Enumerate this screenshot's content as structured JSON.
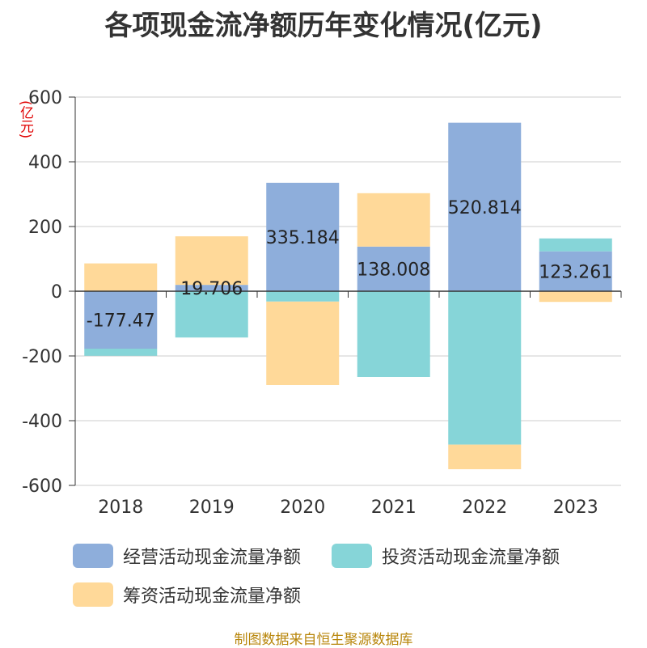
{
  "title": "各项现金流净额历年变化情况(亿元)",
  "unit_label": "(亿元)",
  "source": "制图数据来自恒生聚源数据库",
  "chart_data": {
    "type": "bar",
    "stacked": true,
    "categories": [
      "2018",
      "2019",
      "2020",
      "2021",
      "2022",
      "2023"
    ],
    "ylim": [
      -600,
      600
    ],
    "yticks": [
      600,
      400,
      200,
      0,
      -200,
      -400,
      -600
    ],
    "grid": true,
    "legend_position": "bottom",
    "series": [
      {
        "name": "经营活动现金流量净额",
        "color": "#8eaedb",
        "values": [
          -177.47,
          19.706,
          335.184,
          138.008,
          520.814,
          123.261
        ],
        "labels": [
          "-177.47",
          "19.706",
          "335.184",
          "138.008",
          "520.814",
          "123.261"
        ]
      },
      {
        "name": "投资活动现金流量净额",
        "color": "#86d5d8",
        "values": [
          -22,
          -143,
          -32,
          -265,
          -474,
          40
        ]
      },
      {
        "name": "筹资活动现金流量净额",
        "color": "#ffd999",
        "values": [
          86,
          150,
          -258,
          165,
          -76,
          -33
        ]
      }
    ]
  }
}
